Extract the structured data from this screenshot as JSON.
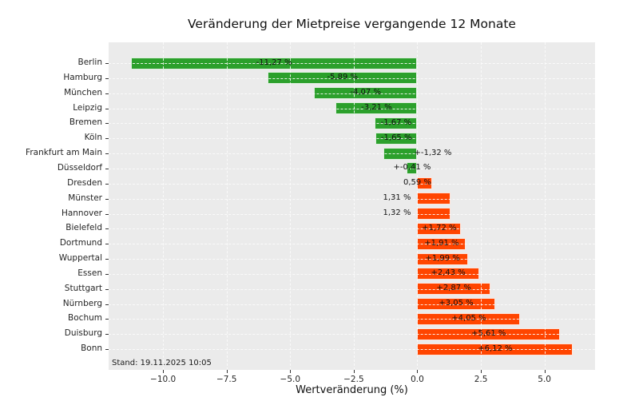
{
  "title": "Veränderung der Mietpreise vergangende 12 Monate",
  "xlabel": "Wertveränderung (%)",
  "stand_note": "Stand: 19.11.2025 10:05",
  "colors": {
    "negative_bar": "#2ca02c",
    "positive_bar": "#ff4500",
    "plot_background": "#ebebeb",
    "grid": "#fcfcfc",
    "text": "#111111"
  },
  "chart_data": {
    "type": "bar",
    "orientation": "horizontal",
    "title": "Veränderung der Mietpreise vergangende 12 Monate",
    "xlabel": "Wertveränderung (%)",
    "ylabel": "",
    "xlim": [
      -12.14,
      6.99
    ],
    "grid": true,
    "grid_style": "dashed-white",
    "x_ticks": [
      {
        "value": -10.0,
        "label": "−10.0"
      },
      {
        "value": -7.5,
        "label": "−7.5"
      },
      {
        "value": -5.0,
        "label": "−5.0"
      },
      {
        "value": -2.5,
        "label": "−2.5"
      },
      {
        "value": 0.0,
        "label": "0.0"
      },
      {
        "value": 2.5,
        "label": "2.5"
      },
      {
        "value": 5.0,
        "label": "5.0"
      }
    ],
    "rows": [
      {
        "city": "Berlin",
        "value": -11.27,
        "label": "-11,27 %",
        "placement": "in"
      },
      {
        "city": "Hamburg",
        "value": -5.89,
        "label": "-5,89 %",
        "placement": "in"
      },
      {
        "city": "München",
        "value": -4.07,
        "label": "-4,07 %",
        "placement": "in"
      },
      {
        "city": "Leipzig",
        "value": -3.21,
        "label": "-3,21 %",
        "placement": "in"
      },
      {
        "city": "Bremen",
        "value": -1.67,
        "label": "-1,67 %",
        "placement": "in"
      },
      {
        "city": "Köln",
        "value": -1.65,
        "label": "-1,65 %",
        "placement": "in"
      },
      {
        "city": "Frankfurt am Main",
        "value": -1.32,
        "label": "+-1,32 %",
        "placement": "zr"
      },
      {
        "city": "Düsseldorf",
        "value": -0.41,
        "label": "+-0,41 %",
        "placement": "in"
      },
      {
        "city": "Dresden",
        "value": 0.59,
        "label": "0,59 %",
        "placement": "zc"
      },
      {
        "city": "Münster",
        "value": 1.31,
        "label": "1,31 %",
        "placement": "zl"
      },
      {
        "city": "Hannover",
        "value": 1.32,
        "label": "1,32 %",
        "placement": "zl"
      },
      {
        "city": "Bielefeld",
        "value": 1.72,
        "label": "+1,72 %",
        "placement": "in"
      },
      {
        "city": "Dortmund",
        "value": 1.91,
        "label": "+1,91 %",
        "placement": "in"
      },
      {
        "city": "Wuppertal",
        "value": 1.99,
        "label": "+1,99 %",
        "placement": "in"
      },
      {
        "city": "Essen",
        "value": 2.43,
        "label": "+2,43 %",
        "placement": "in"
      },
      {
        "city": "Stuttgart",
        "value": 2.87,
        "label": "+2,87 %",
        "placement": "in"
      },
      {
        "city": "Nürnberg",
        "value": 3.05,
        "label": "+3,05 %",
        "placement": "in"
      },
      {
        "city": "Bochum",
        "value": 4.05,
        "label": "+4,05 %",
        "placement": "in"
      },
      {
        "city": "Duisburg",
        "value": 5.61,
        "label": "+5,61 %",
        "placement": "in"
      },
      {
        "city": "Bonn",
        "value": 6.12,
        "label": "+6,12 %",
        "placement": "in"
      }
    ]
  }
}
